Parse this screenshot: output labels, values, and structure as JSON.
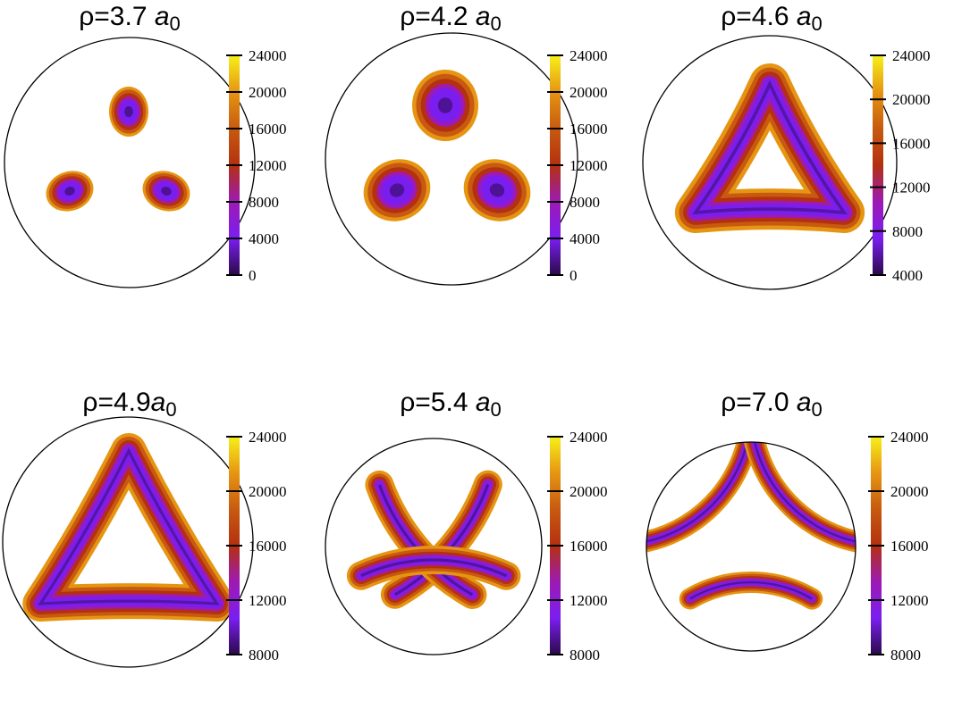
{
  "chart_data": [
    {
      "type": "heatmap",
      "title": "ρ=3.7 a0",
      "title_parts": {
        "prefix": "ρ=3.7 ",
        "unit": "a",
        "sub": "0"
      },
      "colorbar_ticks": [
        "24000",
        "20000",
        "16000",
        "12000",
        "8000",
        "4000",
        "0"
      ],
      "colorbar_range": [
        0,
        24000
      ],
      "colormap": "gnuplot-pm3d (black-purple-red-orange-yellow)",
      "pattern": "three small lobes"
    },
    {
      "type": "heatmap",
      "title": "ρ=4.2 a0",
      "title_parts": {
        "prefix": "ρ=4.2 ",
        "unit": "a",
        "sub": "0"
      },
      "colorbar_ticks": [
        "24000",
        "20000",
        "16000",
        "12000",
        "8000",
        "4000",
        "0"
      ],
      "colorbar_range": [
        0,
        24000
      ],
      "colormap": "gnuplot-pm3d (black-purple-red-orange-yellow)",
      "pattern": "three larger triangular lobes"
    },
    {
      "type": "heatmap",
      "title": "ρ=4.6 a0",
      "title_parts": {
        "prefix": "ρ=4.6 ",
        "unit": "a",
        "sub": "0"
      },
      "colorbar_ticks": [
        "24000",
        "20000",
        "16000",
        "12000",
        "8000",
        "4000"
      ],
      "colorbar_range": [
        4000,
        24000
      ],
      "colormap": "gnuplot-pm3d (black-purple-red-orange-yellow)",
      "pattern": "connected triangular ring"
    },
    {
      "type": "heatmap",
      "title": "ρ=4.9a0",
      "title_parts": {
        "prefix": "ρ=4.9",
        "unit": "a",
        "sub": "0"
      },
      "colorbar_ticks": [
        "24000",
        "20000",
        "16000",
        "12000",
        "8000"
      ],
      "colorbar_range": [
        8000,
        24000
      ],
      "colormap": "gnuplot-pm3d (black-purple-red-orange-yellow)",
      "pattern": "triangular ring"
    },
    {
      "type": "heatmap",
      "title": "ρ=5.4 a0",
      "title_parts": {
        "prefix": "ρ=5.4 ",
        "unit": "a",
        "sub": "0"
      },
      "colorbar_ticks": [
        "24000",
        "20000",
        "16000",
        "12000",
        "8000"
      ],
      "colorbar_range": [
        8000,
        24000
      ],
      "colormap": "gnuplot-pm3d (black-purple-red-orange-yellow)",
      "pattern": "three separated arcs touching the boundary"
    },
    {
      "type": "heatmap",
      "title": "ρ=7.0 a0",
      "title_parts": {
        "prefix": "ρ=7.0 ",
        "unit": "a",
        "sub": "0"
      },
      "colorbar_ticks": [
        "24000",
        "20000",
        "16000",
        "12000",
        "8000"
      ],
      "colorbar_range": [
        8000,
        24000
      ],
      "colormap": "gnuplot-pm3d (black-purple-red-orange-yellow)",
      "pattern": "three thin arcs along the boundary"
    }
  ],
  "colors": {
    "lobe_edge": "#e69512",
    "lobe_orange": "#c75a10",
    "lobe_red": "#b43010",
    "lobe_magenta": "#9d1ab4",
    "lobe_purple": "#7a1ef0",
    "lobe_dark": "#2a0a4a",
    "outline": "#000000"
  }
}
